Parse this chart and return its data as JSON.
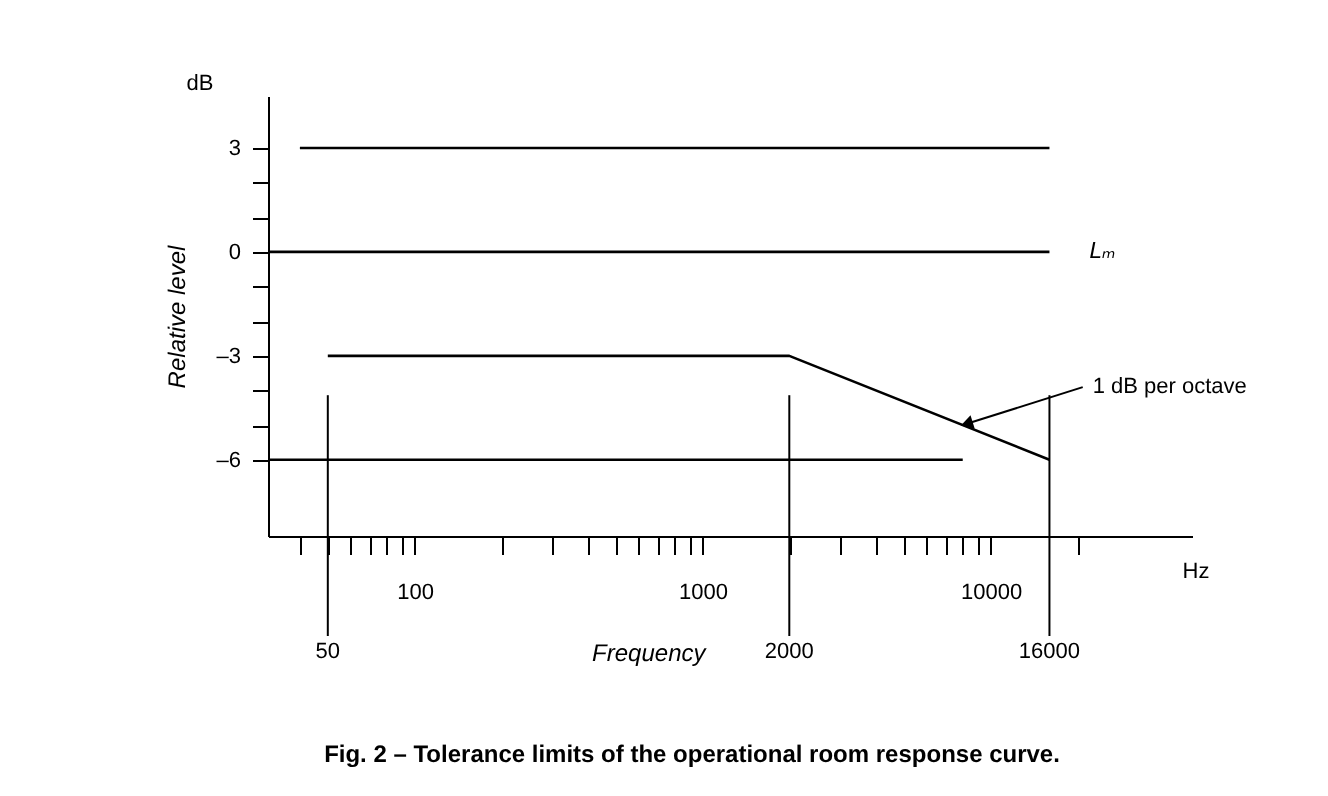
{
  "chart_data": {
    "type": "line",
    "title": "Fig. 2 – Tolerance limits of the operational room response curve.",
    "xlabel": "Frequency",
    "ylabel": "Relative level",
    "log": "x",
    "xlim": [
      31,
      50000
    ],
    "ylim": [
      -8.2,
      4.5
    ],
    "xticks": [
      {
        "value": 40,
        "label": null
      },
      {
        "value": 50,
        "label": null
      },
      {
        "value": 60,
        "label": null
      },
      {
        "value": 70,
        "label": null
      },
      {
        "value": 80,
        "label": null
      },
      {
        "value": 90,
        "label": null
      },
      100,
      {
        "value": 200,
        "label": null
      },
      {
        "value": 300,
        "label": null
      },
      {
        "value": 400,
        "label": null
      },
      {
        "value": 500,
        "label": null
      },
      {
        "value": 600,
        "label": null
      },
      {
        "value": 700,
        "label": null
      },
      {
        "value": 800,
        "label": null
      },
      {
        "value": 900,
        "label": null
      },
      1000,
      {
        "value": 2000,
        "label": null
      },
      {
        "value": 3000,
        "label": null
      },
      {
        "value": 4000,
        "label": null
      },
      {
        "value": 5000,
        "label": null
      },
      {
        "value": 6000,
        "label": null
      },
      {
        "value": 7000,
        "label": null
      },
      {
        "value": 8000,
        "label": null
      },
      {
        "value": 9000,
        "label": null
      },
      10000,
      {
        "value": 20000,
        "label": null
      }
    ],
    "yticks": [
      {
        "value": -6,
        "label": "–6"
      },
      {
        "value": -5,
        "label": null
      },
      {
        "value": -4,
        "label": null
      },
      {
        "value": -3,
        "label": "–3"
      },
      {
        "value": -2,
        "label": null
      },
      {
        "value": -1,
        "label": null
      },
      0,
      {
        "value": 1,
        "label": null
      },
      {
        "value": 2,
        "label": null
      },
      3
    ],
    "series": [
      {
        "color": "#000000",
        "x": [
          40,
          16000
        ],
        "values": [
          3,
          3
        ]
      },
      {
        "name": "Lₘ",
        "color": "#000000",
        "x": [
          31,
          16000
        ],
        "values": [
          0,
          0
        ]
      },
      {
        "color": "#000000",
        "x": [
          50,
          2000,
          16000
        ],
        "values": [
          -3,
          -3,
          -6
        ]
      },
      {
        "color": "#000000",
        "x": [
          31,
          8000
        ],
        "values": [
          -6,
          -6
        ]
      }
    ],
    "ref_lines": [
      {
        "axis": "x",
        "value": 50,
        "label": "50"
      },
      {
        "axis": "x",
        "value": 2000,
        "label": "2000"
      },
      {
        "axis": "x",
        "value": 16000,
        "label": "16000"
      }
    ],
    "annotations": [
      {
        "text": "1 dB per octave",
        "x": 8000,
        "y": -5
      },
      "dB",
      "Hz"
    ],
    "grid": false,
    "marker": "none",
    "line_style": "solid"
  }
}
